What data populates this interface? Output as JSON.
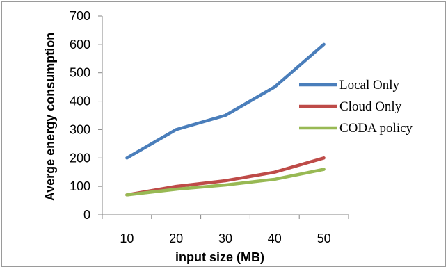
{
  "chart_data": {
    "type": "line",
    "title": "",
    "xlabel": "input size (MB)",
    "ylabel": "Averge energy consumption",
    "categories": [
      "10",
      "20",
      "30",
      "40",
      "50"
    ],
    "y_ticks": [
      "0",
      "100",
      "200",
      "300",
      "400",
      "500",
      "600",
      "700"
    ],
    "ylim": [
      0,
      700
    ],
    "grid": false,
    "legend_position": "right",
    "series": [
      {
        "name": "Local Only",
        "color": "#4a7ebb",
        "values": [
          200,
          300,
          350,
          450,
          600
        ]
      },
      {
        "name": "Cloud Only",
        "color": "#be4b48",
        "values": [
          70,
          100,
          120,
          150,
          200
        ]
      },
      {
        "name": "CODA policy",
        "color": "#98b954",
        "values": [
          70,
          90,
          105,
          125,
          160
        ]
      }
    ]
  }
}
